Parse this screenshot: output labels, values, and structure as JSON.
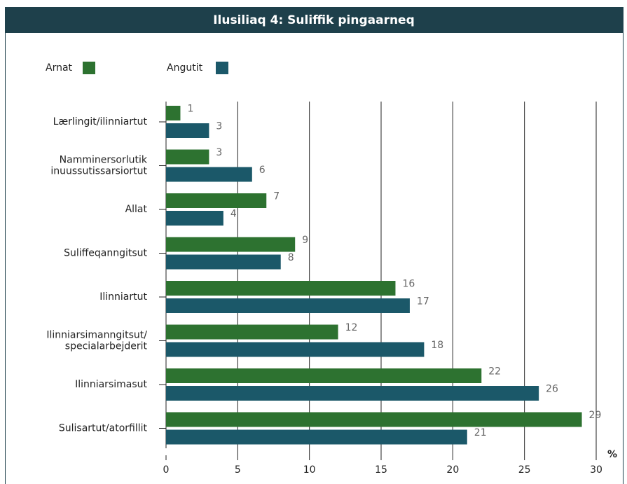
{
  "chart_data": {
    "type": "bar",
    "orientation": "horizontal",
    "title": "Ilusiliaq 4:  Suliffik pingaarneq",
    "x_unit": "%",
    "categories": [
      [
        "Lærlingit/ilinniartut"
      ],
      [
        "Namminersorlutik",
        "inuussutissarsiortut"
      ],
      [
        "Allat"
      ],
      [
        "Suliffeqanngitsut"
      ],
      [
        "Ilinniartut"
      ],
      [
        "Ilinniarsimanngitsut/",
        "specialarbejderit"
      ],
      [
        "Ilinniarsimasut"
      ],
      [
        "Sulisartut/atorfillit"
      ]
    ],
    "series": [
      {
        "name": "Arnat",
        "color": "#2d7230",
        "values": [
          1,
          3,
          7,
          9,
          16,
          12,
          22,
          29
        ]
      },
      {
        "name": "Angutit",
        "color": "#1b5869",
        "values": [
          3,
          6,
          4,
          8,
          17,
          18,
          26,
          21
        ]
      }
    ],
    "xlim": [
      0,
      30
    ],
    "xticks": [
      0,
      5,
      10,
      15,
      20,
      25,
      30
    ],
    "grid": true,
    "legend": "top-left"
  }
}
